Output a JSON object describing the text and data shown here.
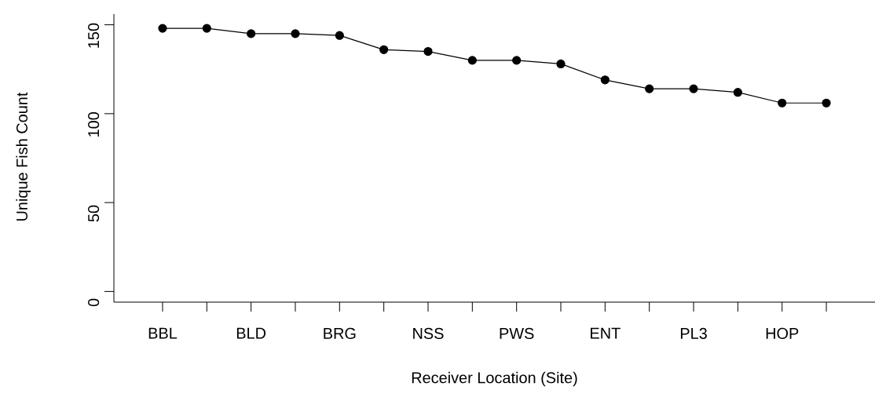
{
  "chart_data": {
    "type": "line",
    "xlabel": "Receiver Location (Site)",
    "ylabel": "Unique Fish Count",
    "categories": [
      "BBL",
      null,
      "BLD",
      null,
      "BRG",
      null,
      "NSS",
      null,
      "PWS",
      null,
      "ENT",
      null,
      "PL3",
      null,
      "HOP",
      null
    ],
    "values": [
      148,
      148,
      145,
      145,
      144,
      136,
      135,
      130,
      130,
      128,
      119,
      114,
      114,
      112,
      106,
      106
    ],
    "color": "#000000",
    "marker": "circle",
    "line_style": "solid",
    "ylim": [
      -6,
      156
    ],
    "yticks": [
      0,
      50,
      100,
      150
    ],
    "grid": false
  }
}
